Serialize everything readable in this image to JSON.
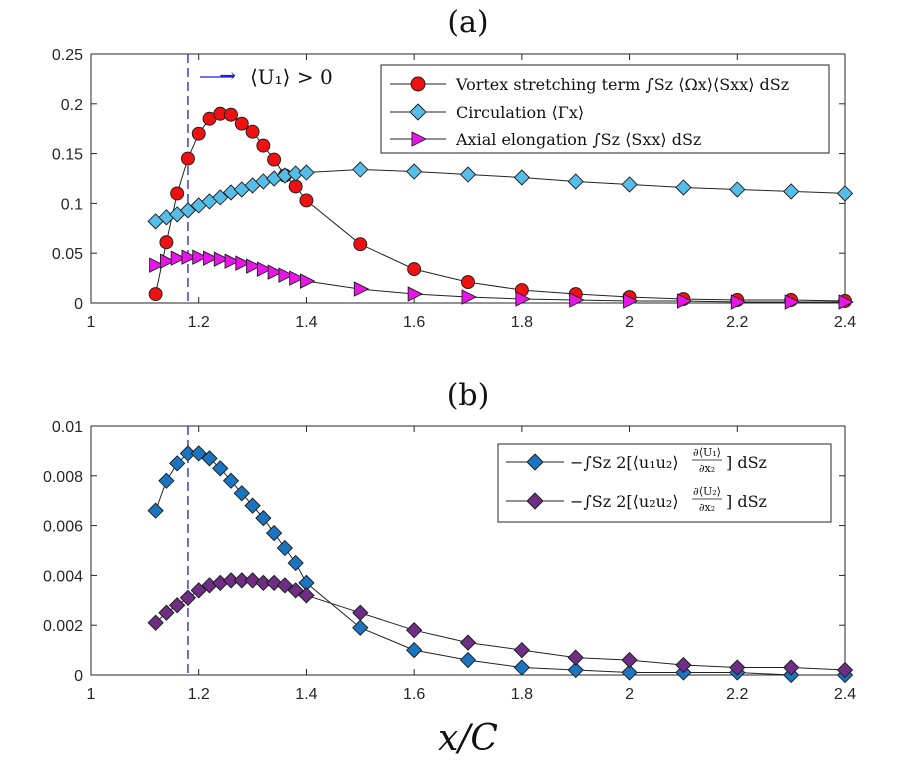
{
  "chart_data": [
    {
      "type": "line",
      "title": "(a)",
      "xlabel": "",
      "ylabel": "",
      "xlim": [
        1,
        2.4
      ],
      "ylim": [
        0,
        0.25
      ],
      "xticks": [
        "1",
        "1.2",
        "1.4",
        "1.6",
        "1.8",
        "2",
        "2.2",
        "2.4"
      ],
      "yticks": [
        "0",
        "0.05",
        "0.1",
        "0.15",
        "0.2",
        "0.25"
      ],
      "annotation": {
        "x": 1.18,
        "arrow": "→",
        "text": "⟨U₁⟩ > 0"
      },
      "series": [
        {
          "name": "Vortex stretching term ∫S_z ⟨Ωx⟩⟨Sxx⟩ dSz",
          "legend": "Vortex stretching term ∫Sz ⟨Ωx⟩⟨Sxx⟩ dSz",
          "marker": "circle",
          "color": "#ee1111",
          "x": [
            1.12,
            1.14,
            1.16,
            1.18,
            1.2,
            1.22,
            1.24,
            1.26,
            1.28,
            1.3,
            1.32,
            1.34,
            1.36,
            1.38,
            1.4,
            1.5,
            1.6,
            1.7,
            1.8,
            1.9,
            2.0,
            2.1,
            2.2,
            2.3,
            2.4
          ],
          "y": [
            0.009,
            0.061,
            0.11,
            0.145,
            0.17,
            0.185,
            0.19,
            0.189,
            0.18,
            0.172,
            0.158,
            0.144,
            0.128,
            0.117,
            0.103,
            0.059,
            0.034,
            0.021,
            0.013,
            0.009,
            0.006,
            0.004,
            0.003,
            0.003,
            0.002
          ]
        },
        {
          "name": "Circulation ⟨Γx⟩",
          "legend": "Circulation ⟨Γx⟩",
          "marker": "diamond",
          "color": "#55bde8",
          "x": [
            1.12,
            1.14,
            1.16,
            1.18,
            1.2,
            1.22,
            1.24,
            1.26,
            1.28,
            1.3,
            1.32,
            1.34,
            1.36,
            1.38,
            1.4,
            1.5,
            1.6,
            1.7,
            1.8,
            1.9,
            2.0,
            2.1,
            2.2,
            2.3,
            2.4
          ],
          "y": [
            0.082,
            0.086,
            0.089,
            0.093,
            0.098,
            0.102,
            0.106,
            0.111,
            0.114,
            0.118,
            0.122,
            0.125,
            0.128,
            0.13,
            0.131,
            0.134,
            0.132,
            0.129,
            0.126,
            0.122,
            0.119,
            0.116,
            0.114,
            0.112,
            0.11
          ]
        },
        {
          "name": "Axial elongation ∫Sz ⟨Sxx⟩ dSz",
          "legend": "Axial elongation ∫Sz ⟨Sxx⟩ dSz",
          "marker": "triangle-right",
          "color": "#e815e8",
          "x": [
            1.12,
            1.14,
            1.16,
            1.18,
            1.2,
            1.22,
            1.24,
            1.26,
            1.28,
            1.3,
            1.32,
            1.34,
            1.36,
            1.38,
            1.4,
            1.5,
            1.6,
            1.7,
            1.8,
            1.9,
            2.0,
            2.1,
            2.2,
            2.3,
            2.4
          ],
          "y": [
            0.038,
            0.042,
            0.045,
            0.046,
            0.046,
            0.045,
            0.044,
            0.042,
            0.04,
            0.037,
            0.034,
            0.031,
            0.028,
            0.025,
            0.022,
            0.014,
            0.009,
            0.006,
            0.004,
            0.003,
            0.002,
            0.002,
            0.001,
            0.001,
            0.001
          ]
        }
      ]
    },
    {
      "type": "line",
      "title": "(b)",
      "xlabel": "x/C",
      "ylabel": "",
      "xlim": [
        1,
        2.4
      ],
      "ylim": [
        0,
        0.01
      ],
      "xticks": [
        "1",
        "1.2",
        "1.4",
        "1.6",
        "1.8",
        "2",
        "2.2",
        "2.4"
      ],
      "yticks": [
        "0",
        "0.002",
        "0.004",
        "0.006",
        "0.008",
        "0.01"
      ],
      "annotation": {
        "x": 1.18
      },
      "series": [
        {
          "name": "−∫Sz 2[⟨u1u2⟩ ∂⟨U1⟩/∂x2] dSz",
          "legend_pre": "−∫Sz 2[⟨u₁u₂⟩",
          "frac_num": "∂⟨U₁⟩",
          "frac_den": "∂x₂",
          "legend_post": "] dSz",
          "marker": "diamond",
          "color": "#1b74bf",
          "x": [
            1.12,
            1.14,
            1.16,
            1.18,
            1.2,
            1.22,
            1.24,
            1.26,
            1.28,
            1.3,
            1.32,
            1.34,
            1.36,
            1.38,
            1.4,
            1.5,
            1.6,
            1.7,
            1.8,
            1.9,
            2.0,
            2.1,
            2.2,
            2.3,
            2.4
          ],
          "y": [
            0.0066,
            0.0078,
            0.0085,
            0.0089,
            0.0089,
            0.0087,
            0.0083,
            0.0078,
            0.0073,
            0.0068,
            0.0063,
            0.0057,
            0.0051,
            0.0045,
            0.0037,
            0.0019,
            0.001,
            0.0006,
            0.0003,
            0.0002,
            0.0001,
            0.0001,
            0.0001,
            0.0,
            0.0
          ]
        },
        {
          "name": "−∫Sz 2[⟨u2u2⟩ ∂⟨U2⟩/∂x2] dSz",
          "legend_pre": "−∫Sz 2[⟨u₂u₂⟩",
          "frac_num": "∂⟨U₂⟩",
          "frac_den": "∂x₂",
          "legend_post": "] dSz",
          "marker": "diamond",
          "color": "#6d2e84",
          "x": [
            1.12,
            1.14,
            1.16,
            1.18,
            1.2,
            1.22,
            1.24,
            1.26,
            1.28,
            1.3,
            1.32,
            1.34,
            1.36,
            1.38,
            1.4,
            1.5,
            1.6,
            1.7,
            1.8,
            1.9,
            2.0,
            2.1,
            2.2,
            2.3,
            2.4
          ],
          "y": [
            0.0021,
            0.0025,
            0.0028,
            0.0031,
            0.0034,
            0.0036,
            0.0037,
            0.0038,
            0.0038,
            0.0038,
            0.0037,
            0.0037,
            0.0036,
            0.0034,
            0.0032,
            0.0025,
            0.0018,
            0.0013,
            0.001,
            0.0007,
            0.0006,
            0.0004,
            0.0003,
            0.0003,
            0.0002
          ]
        }
      ]
    }
  ]
}
